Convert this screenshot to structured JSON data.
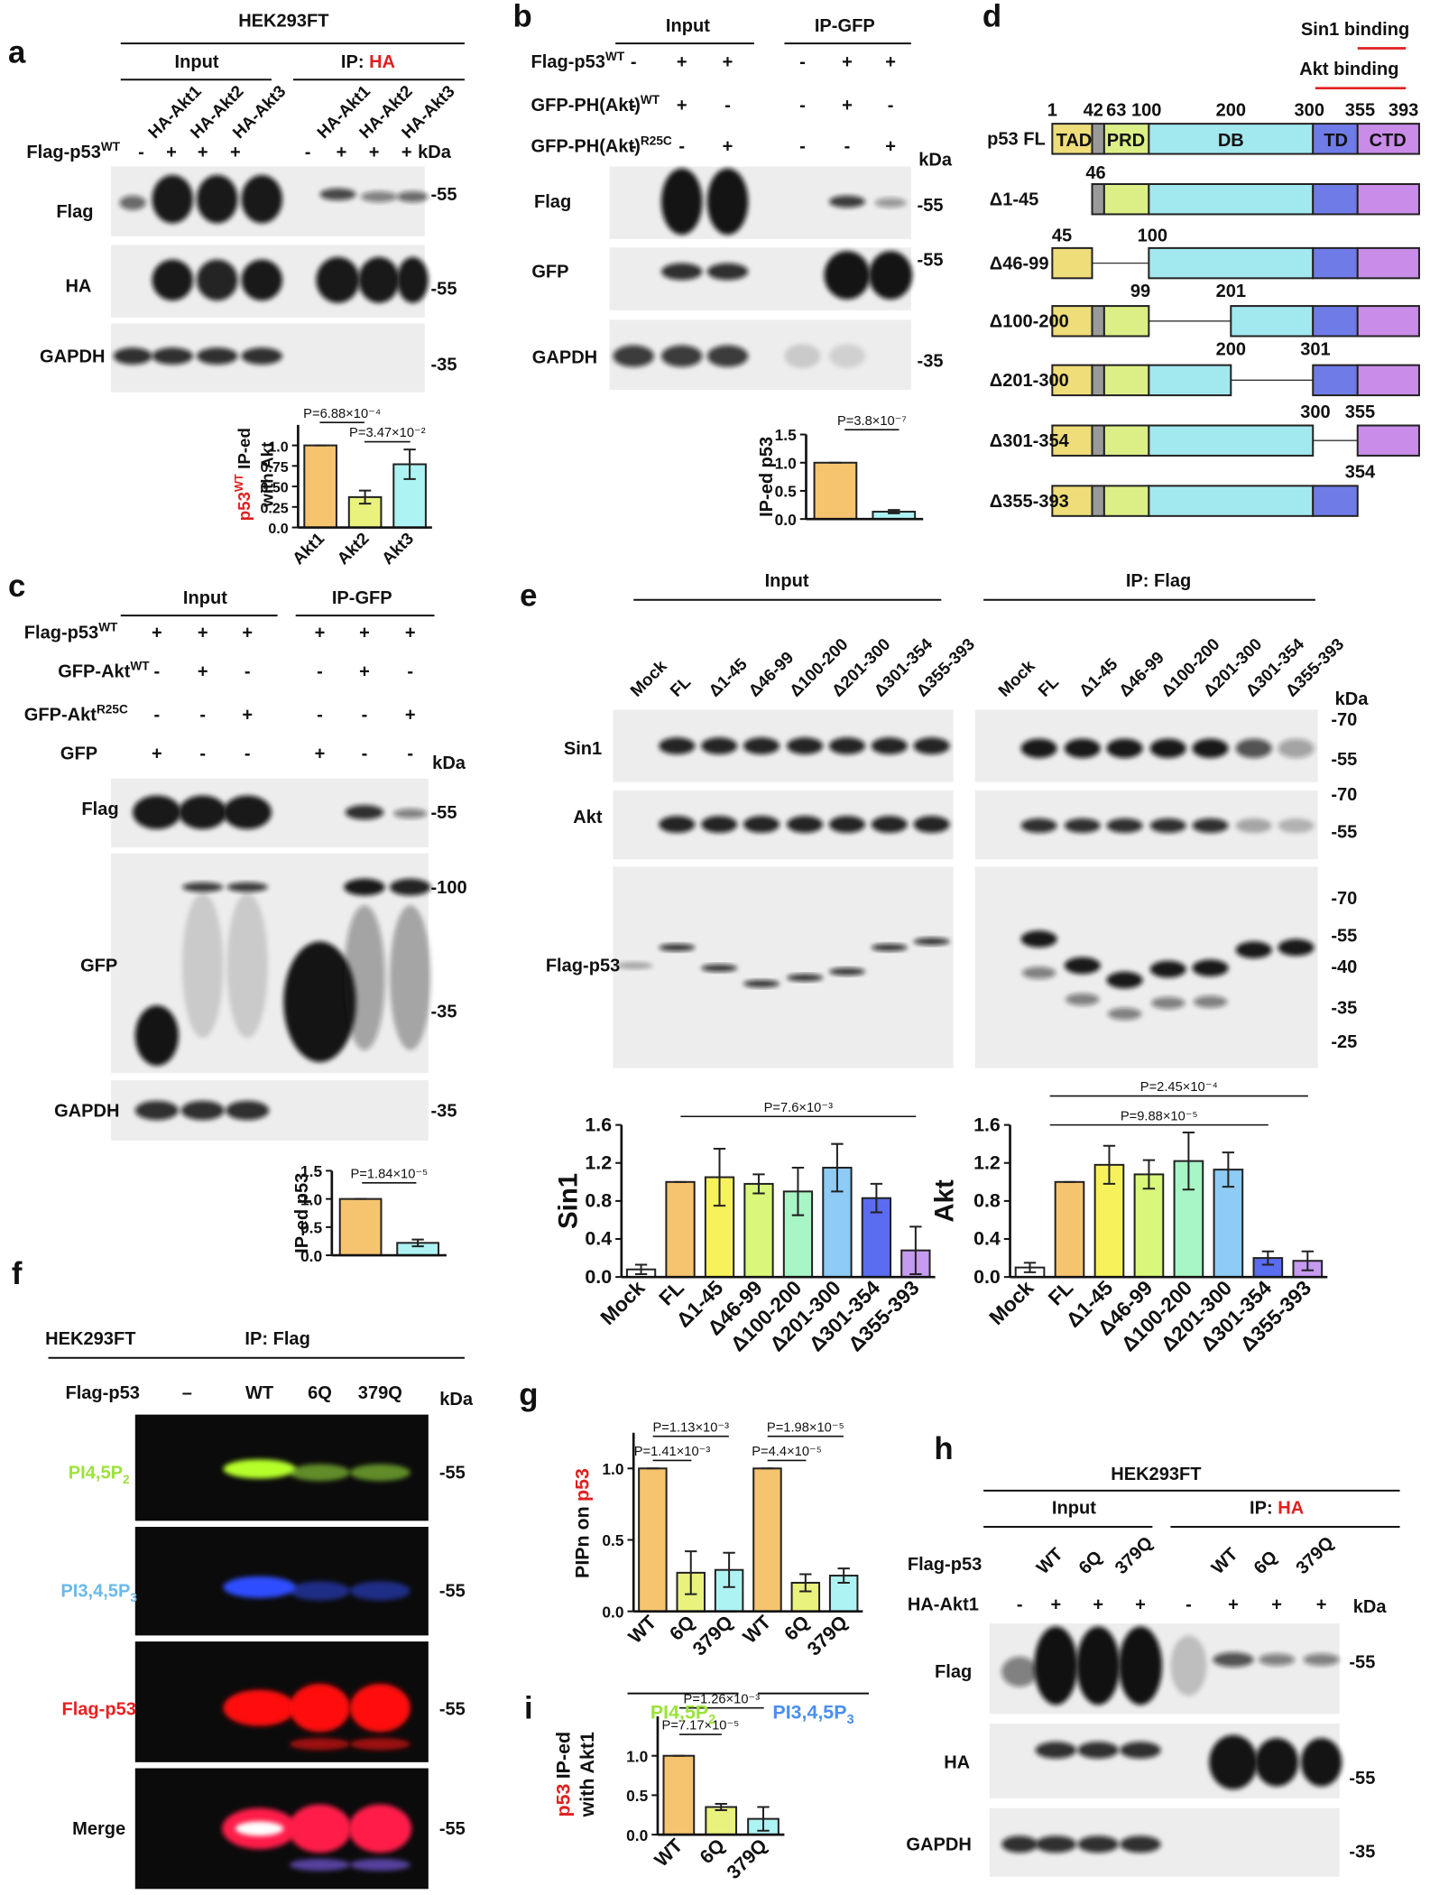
{
  "a": {
    "label": "a",
    "header": "HEK293FT",
    "input": "Input",
    "ip": "IP: ",
    "ip_target": "HA",
    "lanes": [
      "HA-Akt1",
      "HA-Akt2",
      "HA-Akt3",
      "HA-Akt1",
      "HA-Akt2",
      "HA-Akt3"
    ],
    "row": {
      "name": "Flag-p53",
      "sup": "WT",
      "signs": [
        "-",
        "+",
        "+",
        "+",
        "-",
        "+",
        "+",
        "+"
      ]
    },
    "kda": "kDa",
    "blots": [
      "Flag",
      "HA",
      "GAPDH"
    ],
    "markers": [
      "-55",
      "-55",
      "-35"
    ]
  },
  "b": {
    "label": "b",
    "input": "Input",
    "ip": "IP-GFP",
    "rows": [
      {
        "name": "Flag-p53",
        "sup": "WT",
        "signs": [
          "-",
          "+",
          "+",
          "-",
          "+",
          "+"
        ]
      },
      {
        "name": "GFP-PH(Akt)",
        "sup": "WT",
        "signs": [
          "-",
          "+",
          "-",
          "-",
          "+",
          "-"
        ]
      },
      {
        "name": "GFP-PH(Akt)",
        "sup": "R25C",
        "signs": [
          "-",
          "-",
          "+",
          "-",
          "-",
          "+"
        ]
      }
    ],
    "kda": "kDa",
    "blots": [
      "Flag",
      "GFP",
      "GAPDH"
    ],
    "markers": [
      "-55",
      "-55",
      "-35"
    ]
  },
  "c": {
    "label": "c",
    "input": "Input",
    "ip": "IP-GFP",
    "rows": [
      {
        "name": "Flag-p53",
        "sup": "WT",
        "signs": [
          "+",
          "+",
          "+",
          "+",
          "+",
          "+"
        ]
      },
      {
        "name": "GFP-Akt",
        "sup": "WT",
        "signs": [
          "-",
          "+",
          "-",
          "-",
          "+",
          "-"
        ]
      },
      {
        "name": "GFP-Akt",
        "sup": "R25C",
        "signs": [
          "-",
          "-",
          "+",
          "-",
          "-",
          "+"
        ]
      },
      {
        "name": "GFP",
        "signs": [
          "+",
          "-",
          "-",
          "+",
          "-",
          "-"
        ]
      }
    ],
    "kda": "kDa",
    "blots": [
      "Flag",
      "GFP",
      "GAPDH"
    ],
    "markers": [
      "-55",
      "-100",
      "-35",
      "-35"
    ]
  },
  "d": {
    "label": "d",
    "sin1": "Sin1 binding",
    "akt": "Akt binding",
    "fl": "p53 FL",
    "positions": [
      1,
      42,
      63,
      100,
      200,
      300,
      355,
      393
    ],
    "domains": [
      "TAD",
      "PRD",
      "DB",
      "TD",
      "CTD"
    ],
    "mutants": [
      {
        "name": "Δ1-45",
        "ends": [
          46
        ]
      },
      {
        "name": "Δ46-99",
        "ends": [
          45,
          100
        ]
      },
      {
        "name": "Δ100-200",
        "ends": [
          99,
          201
        ]
      },
      {
        "name": "Δ201-300",
        "ends": [
          200,
          301
        ]
      },
      {
        "name": "Δ301-354",
        "ends": [
          300,
          355
        ]
      },
      {
        "name": "Δ355-393",
        "ends": [
          354
        ]
      }
    ]
  },
  "e": {
    "label": "e",
    "input": "Input",
    "ip": "IP: Flag",
    "lanes": [
      "Mock",
      "FL",
      "Δ1-45",
      "Δ46-99",
      "Δ100-200",
      "Δ201-300",
      "Δ301-354",
      "Δ355-393",
      "Mock",
      "FL",
      "Δ1-45",
      "Δ46-99",
      "Δ100-200",
      "Δ201-300",
      "Δ301-354",
      "Δ355-393"
    ],
    "kda": "kDa",
    "blots": [
      "Sin1",
      "Akt",
      "Flag-p53"
    ],
    "markers": [
      "-70",
      "-55",
      "-70",
      "-55",
      "-70",
      "-55",
      "-40",
      "-35",
      "-25"
    ]
  },
  "f": {
    "label": "f",
    "cell": "HEK293FT",
    "ip": "IP: Flag",
    "row": "Flag-p53",
    "lanes": [
      "–",
      "WT",
      "6Q",
      "379Q"
    ],
    "kda": "kDa",
    "blots": [
      {
        "name": "PI4,5P",
        "sub": "2",
        "color": "#9be33a"
      },
      {
        "name": "PI3,4,5P",
        "sub": "3",
        "color": "#6ab8e8"
      },
      {
        "name": "Flag-p53",
        "color": "#e82020"
      },
      {
        "name": "Merge",
        "color": "#111111"
      }
    ],
    "markers": [
      "-55",
      "-55",
      "-55",
      "-55"
    ]
  },
  "g": {
    "label": "g"
  },
  "h": {
    "label": "h",
    "header": "HEK293FT",
    "input": "Input",
    "ip": "IP: ",
    "ip_target": "HA",
    "row1": "Flag-p53",
    "lanes": [
      "WT",
      "6Q",
      "379Q",
      "WT",
      "6Q",
      "379Q"
    ],
    "row2": "HA-Akt1",
    "signs": [
      "-",
      "+",
      "+",
      "+",
      "-",
      "+",
      "+",
      "+"
    ],
    "kda": "kDa",
    "blots": [
      "Flag",
      "HA",
      "GAPDH"
    ],
    "markers": [
      "-55",
      "-55",
      "-35"
    ]
  },
  "i": {
    "label": "i"
  },
  "chart_data": [
    {
      "type": "bar",
      "categories": [
        "Akt1",
        "Akt2",
        "Akt3"
      ],
      "values": [
        1.0,
        0.37,
        0.77
      ],
      "errors": [
        0,
        0.08,
        0.18
      ],
      "colors": [
        "#f6c46f",
        "#e9f27c",
        "#aef3f3"
      ],
      "ylim": [
        0,
        1.25
      ],
      "yticks": [
        {
          "value": 0,
          "label": "0.0"
        },
        0.25,
        {
          "value": 0.5,
          "label": "0.50"
        },
        0.75,
        {
          "value": 1,
          "label": "1.0"
        }
      ],
      "ylabel_highlight": "p53",
      "ylabel_sup": "WT",
      "ylabel": "IP-ed",
      "ylabel2": "with Akt",
      "annotations": [
        "P=6.88×10⁻⁴",
        "P=3.47×10⁻²"
      ]
    },
    {
      "type": "bar",
      "categories": [
        null,
        null
      ],
      "values": [
        1.0,
        0.13
      ],
      "errors": [
        0,
        0.03
      ],
      "colors": [
        "#f6c46f",
        "#aef3f3"
      ],
      "ylim": [
        0,
        1.5
      ],
      "yticks": [
        {
          "value": 0,
          "label": "0.0"
        },
        0.5,
        {
          "value": 1,
          "label": "1.0"
        },
        1.5
      ],
      "ylabel": "IP-ed p53",
      "annotations": [
        "P=3.8×10⁻⁷"
      ]
    },
    {
      "type": "bar",
      "categories": [
        null,
        null
      ],
      "values": [
        1.0,
        0.22
      ],
      "errors": [
        0,
        0.06
      ],
      "colors": [
        "#f6c46f",
        "#aef3f3"
      ],
      "ylim": [
        0,
        1.5
      ],
      "yticks": [
        {
          "value": 0,
          "label": "0.0"
        },
        0.5,
        {
          "value": 1,
          "label": "1.0"
        },
        1.5
      ],
      "ylabel": "IP-ed p53",
      "annotations": [
        "P=1.84×10⁻⁵"
      ]
    },
    {
      "type": "bar",
      "categories": [
        "Mock",
        "FL",
        "Δ1-45",
        "Δ46-99",
        "Δ100-200",
        "Δ201-300",
        "Δ301-354",
        "Δ355-393"
      ],
      "values": [
        0.08,
        1.0,
        1.05,
        0.98,
        0.9,
        1.15,
        0.83,
        0.28
      ],
      "errors": [
        0.05,
        0,
        0.3,
        0.1,
        0.25,
        0.25,
        0.15,
        0.25
      ],
      "colors": [
        "#ffffff",
        "#f6c46f",
        "#f7f25b",
        "#d9f77a",
        "#a8f5c6",
        "#8ecbf5",
        "#5a6cf0",
        "#c59af0"
      ],
      "ylim": [
        0,
        1.6
      ],
      "yticks": [
        {
          "value": 0,
          "label": "0.0"
        },
        0.4,
        0.8,
        1.2,
        1.6
      ],
      "ylabel": "Sin1",
      "annotations": [
        "P=7.6×10⁻³"
      ]
    },
    {
      "type": "bar",
      "categories": [
        "Mock",
        "FL",
        "Δ1-45",
        "Δ46-99",
        "Δ100-200",
        "Δ201-300",
        "Δ301-354",
        "Δ355-393"
      ],
      "values": [
        0.1,
        1.0,
        1.18,
        1.08,
        1.22,
        1.13,
        0.2,
        0.17
      ],
      "errors": [
        0.05,
        0,
        0.2,
        0.15,
        0.3,
        0.18,
        0.07,
        0.1
      ],
      "colors": [
        "#ffffff",
        "#f6c46f",
        "#f7f25b",
        "#d9f77a",
        "#a8f5c6",
        "#8ecbf5",
        "#5a6cf0",
        "#c59af0"
      ],
      "ylim": [
        0,
        1.6
      ],
      "yticks": [
        {
          "value": 0,
          "label": "0.0"
        },
        0.4,
        0.8,
        1.2,
        1.6
      ],
      "ylabel": "Akt",
      "annotations": [
        "P=2.45×10⁻⁴",
        "P=9.88×10⁻⁵"
      ]
    },
    {
      "type": "bar",
      "categories": [
        "WT",
        "6Q",
        "379Q",
        "WT",
        "6Q",
        "379Q"
      ],
      "values": [
        1.0,
        0.27,
        0.29,
        1.0,
        0.2,
        0.25
      ],
      "errors": [
        0,
        0.15,
        0.12,
        0,
        0.06,
        0.05
      ],
      "colors": [
        "#f6c46f",
        "#e9f27c",
        "#aef3f3",
        "#f6c46f",
        "#e9f27c",
        "#aef3f3"
      ],
      "ylim": [
        0,
        1.25
      ],
      "yticks": [
        {
          "value": 0,
          "label": "0.0"
        },
        0.5,
        {
          "value": 1,
          "label": "1.0"
        }
      ],
      "ylabel": "PIPn on",
      "ylabel_highlight": "p53",
      "groups": [
        {
          "name": "PI4,5P",
          "sub": "2",
          "color": "#9be33a"
        },
        {
          "name": "PI3,4,5P",
          "sub": "3",
          "color": "#4a8ef0"
        }
      ],
      "annotations": [
        "P=1.13×10⁻³",
        "P=1.41×10⁻³",
        "P=1.98×10⁻⁵",
        "P=4.4×10⁻⁵"
      ]
    },
    {
      "type": "bar",
      "categories": [
        "WT",
        "6Q",
        "379Q"
      ],
      "values": [
        1.0,
        0.35,
        0.2
      ],
      "errors": [
        0,
        0.04,
        0.15
      ],
      "colors": [
        "#f6c46f",
        "#e9f27c",
        "#aef3f3"
      ],
      "ylim": [
        0,
        1.5
      ],
      "yticks": [
        {
          "value": 0,
          "label": "0.0"
        },
        0.5,
        {
          "value": 1,
          "label": "1.0"
        }
      ],
      "ylabel_highlight": "p53",
      "ylabel": "IP-ed",
      "ylabel2": "with Akt1",
      "annotations": [
        "P=1.26×10⁻³",
        "P=7.17×10⁻⁵"
      ]
    }
  ]
}
